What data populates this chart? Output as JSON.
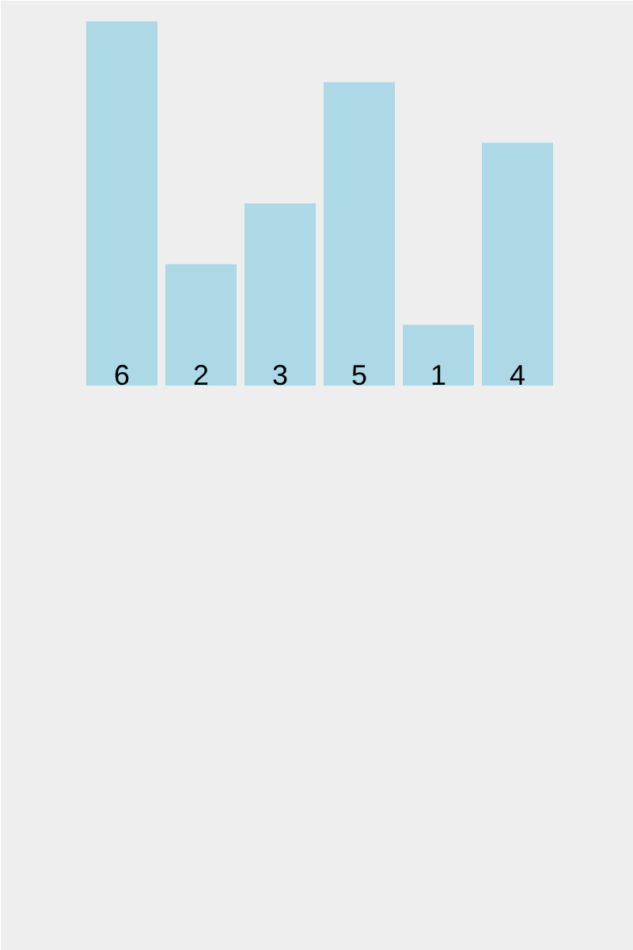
{
  "chart_data": {
    "type": "bar",
    "categories": [
      null,
      null,
      null,
      null,
      null,
      null
    ],
    "values": [
      6,
      2,
      3,
      5,
      1,
      4
    ],
    "color": "#add8e6",
    "data_labels": true
  }
}
